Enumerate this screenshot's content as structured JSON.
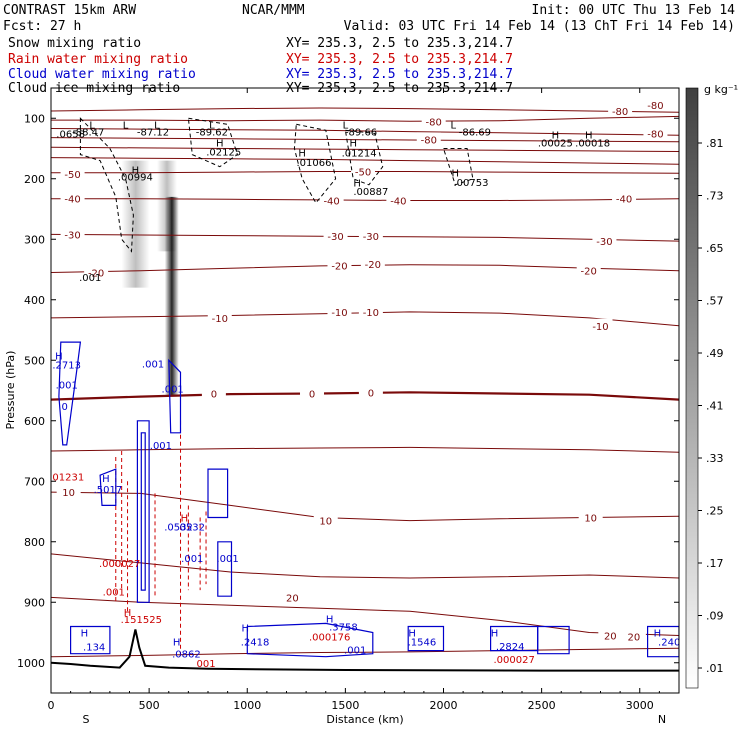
{
  "header": {
    "model": "CONTRAST 15km ARW",
    "org": "NCAR/MMM",
    "init": "Init: 00 UTC Thu 13 Feb 14",
    "fcst": "Fcst:   27 h",
    "valid": "Valid: 03 UTC Fri 14 Feb 14 (13 ChT Fri 14 Feb 14)"
  },
  "legend": [
    {
      "label": "Snow mixing ratio",
      "xy": "XY=  235.3,   2.5 to 235.3,214.7",
      "color": "#000000"
    },
    {
      "label": "Rain water mixing ratio",
      "xy": "XY=  235.3,   2.5 to 235.3,214.7",
      "color": "#cc0000"
    },
    {
      "label": "Cloud water mixing ratio",
      "xy": "XY=  235.3,   2.5 to 235.3,214.7",
      "color": "#0000cc"
    },
    {
      "label": "Cloud ice mixing ratio",
      "xy": "XY=  235.3,   2.5 to 235.3,214.7",
      "color": "#000000"
    }
  ],
  "colorbar": {
    "unit": "g kg⁻¹",
    "labels": [
      ".81",
      ".73",
      ".65",
      ".57",
      ".49",
      ".41",
      ".33",
      ".25",
      ".17",
      ".09",
      ".01"
    ]
  },
  "chart_data": {
    "type": "cross-section",
    "xlabel": "Distance (km)",
    "ylabel": "Pressure (hPa)",
    "xlim": [
      0,
      3200
    ],
    "ylim": [
      1050,
      50
    ],
    "xticks": [
      0,
      500,
      1000,
      1500,
      2000,
      2500,
      3000
    ],
    "yticks": [
      100,
      200,
      300,
      400,
      500,
      600,
      700,
      800,
      900,
      1000
    ],
    "end_labels": {
      "left": "S",
      "right": "N"
    },
    "temperature_isotherms": [
      {
        "value": "-80",
        "labels": [
          {
            "x": 2900,
            "p": 88,
            "t": "-80"
          },
          {
            "x": 3080,
            "p": 125,
            "t": "-80"
          }
        ]
      },
      {
        "value": "-80",
        "labels": [
          {
            "x": 1950,
            "p": 105,
            "t": "-80"
          },
          {
            "x": 3080,
            "p": 78,
            "t": "-80"
          }
        ]
      },
      {
        "value": "-80",
        "labels": [
          {
            "x": 1925,
            "p": 135,
            "t": "-80"
          }
        ]
      },
      {
        "value": "-50",
        "labels": [
          {
            "x": 110,
            "p": 192,
            "t": "-50"
          },
          {
            "x": 1590,
            "p": 188,
            "t": "-50"
          }
        ]
      },
      {
        "value": "-40",
        "labels": [
          {
            "x": 110,
            "p": 233,
            "t": "-40"
          },
          {
            "x": 1430,
            "p": 236,
            "t": "-40"
          },
          {
            "x": 1770,
            "p": 236,
            "t": "-40"
          },
          {
            "x": 2920,
            "p": 233,
            "t": "-40"
          }
        ]
      },
      {
        "value": "-30",
        "labels": [
          {
            "x": 110,
            "p": 292,
            "t": "-30"
          },
          {
            "x": 1450,
            "p": 295,
            "t": "-30"
          },
          {
            "x": 1630,
            "p": 295,
            "t": "-30"
          },
          {
            "x": 2820,
            "p": 303,
            "t": "-30"
          }
        ]
      },
      {
        "value": "-20",
        "labels": [
          {
            "x": 230,
            "p": 355,
            "t": "-20"
          },
          {
            "x": 1470,
            "p": 343,
            "t": "-20"
          },
          {
            "x": 1640,
            "p": 341,
            "t": "-20"
          },
          {
            "x": 2740,
            "p": 352,
            "t": "-20"
          }
        ]
      },
      {
        "value": "-10",
        "labels": [
          {
            "x": 860,
            "p": 430,
            "t": "-10"
          },
          {
            "x": 1470,
            "p": 420,
            "t": "-10"
          },
          {
            "x": 1630,
            "p": 420,
            "t": "-10"
          },
          {
            "x": 2800,
            "p": 443,
            "t": "-10"
          }
        ]
      },
      {
        "value": "0",
        "labels": [
          {
            "x": 830,
            "p": 555,
            "t": "0"
          },
          {
            "x": 1330,
            "p": 555,
            "t": "0"
          },
          {
            "x": 1630,
            "p": 553,
            "t": "0"
          }
        ]
      },
      {
        "value": "10",
        "labels": [
          {
            "x": 90,
            "p": 718,
            "t": "10"
          },
          {
            "x": 1400,
            "p": 765,
            "t": "10"
          },
          {
            "x": 2750,
            "p": 760,
            "t": "10"
          }
        ]
      },
      {
        "value": "20",
        "labels": [
          {
            "x": 1230,
            "p": 892,
            "t": "20"
          },
          {
            "x": 2850,
            "p": 955,
            "t": "20"
          },
          {
            "x": 2970,
            "p": 957,
            "t": "20"
          }
        ]
      }
    ],
    "cloud_ice_annotations": [
      {
        "x": 100,
        "p": 125,
        "t": ".0658"
      },
      {
        "x": 430,
        "p": 196,
        "t": ".00994"
      },
      {
        "x": 430,
        "p": 185,
        "t": "H"
      },
      {
        "x": 880,
        "p": 155,
        "t": ".02125"
      },
      {
        "x": 860,
        "p": 140,
        "t": "H"
      },
      {
        "x": 1340,
        "p": 172,
        "t": ".01066"
      },
      {
        "x": 1280,
        "p": 157,
        "t": "H"
      },
      {
        "x": 1570,
        "p": 157,
        "t": ".01214"
      },
      {
        "x": 1540,
        "p": 140,
        "t": "H"
      },
      {
        "x": 2570,
        "p": 140,
        "t": ".00025"
      },
      {
        "x": 2570,
        "p": 127,
        "t": "H"
      },
      {
        "x": 2760,
        "p": 140,
        "t": ".00018"
      },
      {
        "x": 2740,
        "p": 127,
        "t": "H"
      },
      {
        "x": 2140,
        "p": 205,
        "t": ".00753"
      },
      {
        "x": 2060,
        "p": 190,
        "t": "H"
      },
      {
        "x": 1630,
        "p": 220,
        "t": ".00887"
      },
      {
        "x": 1560,
        "p": 206,
        "t": "H"
      },
      {
        "x": 200,
        "p": 362,
        "t": ".001"
      },
      {
        "x": 210,
        "p": 110,
        "t": "L"
      },
      {
        "x": 380,
        "p": 110,
        "t": "L"
      },
      {
        "x": 540,
        "p": 110,
        "t": "L"
      },
      {
        "x": 820,
        "p": 110,
        "t": "L"
      },
      {
        "x": 1500,
        "p": 110,
        "t": "L"
      },
      {
        "x": 2050,
        "p": 110,
        "t": "L"
      },
      {
        "x": 190,
        "p": 122,
        "t": "-88.47"
      },
      {
        "x": 520,
        "p": 122,
        "t": "-87.12"
      },
      {
        "x": 820,
        "p": 122,
        "t": "-89.62"
      },
      {
        "x": 1580,
        "p": 122,
        "t": "-89.66"
      },
      {
        "x": 2160,
        "p": 122,
        "t": "-86.69"
      }
    ],
    "cloud_water_annotations": [
      {
        "x": 40,
        "p": 492,
        "t": "H"
      },
      {
        "x": 80,
        "p": 507,
        "t": ".2713"
      },
      {
        "x": 80,
        "p": 540,
        "t": ".001"
      },
      {
        "x": 70,
        "p": 576,
        "t": "0"
      },
      {
        "x": 520,
        "p": 505,
        "t": ".001"
      },
      {
        "x": 620,
        "p": 547,
        "t": ".001"
      },
      {
        "x": 290,
        "p": 713,
        "t": ".5017"
      },
      {
        "x": 280,
        "p": 695,
        "t": "H"
      },
      {
        "x": 650,
        "p": 775,
        "t": ".0532"
      },
      {
        "x": 720,
        "p": 775,
        "t": "0532"
      },
      {
        "x": 720,
        "p": 827,
        "t": ".001"
      },
      {
        "x": 900,
        "p": 827,
        "t": ".001"
      },
      {
        "x": 560,
        "p": 640,
        "t": ".001"
      },
      {
        "x": 170,
        "p": 950,
        "t": "H"
      },
      {
        "x": 220,
        "p": 973,
        "t": ".134"
      },
      {
        "x": 640,
        "p": 965,
        "t": "H"
      },
      {
        "x": 690,
        "p": 985,
        "t": ".0862"
      },
      {
        "x": 990,
        "p": 942,
        "t": "H"
      },
      {
        "x": 1040,
        "p": 965,
        "t": ".2418"
      },
      {
        "x": 1420,
        "p": 927,
        "t": "H"
      },
      {
        "x": 1490,
        "p": 940,
        "t": ".3758"
      },
      {
        "x": 1550,
        "p": 978,
        "t": ".001"
      },
      {
        "x": 1840,
        "p": 950,
        "t": "H"
      },
      {
        "x": 1890,
        "p": 965,
        "t": ".1546"
      },
      {
        "x": 2260,
        "p": 950,
        "t": "H"
      },
      {
        "x": 2340,
        "p": 972,
        "t": ".2824"
      },
      {
        "x": 3090,
        "p": 950,
        "t": "H"
      },
      {
        "x": 3150,
        "p": 965,
        "t": ".240"
      }
    ],
    "rain_annotations": [
      {
        "x": 80,
        "p": 692,
        "t": ".01231"
      },
      {
        "x": 350,
        "p": 835,
        "t": ".000027"
      },
      {
        "x": 320,
        "p": 882,
        "t": ".001"
      },
      {
        "x": 460,
        "p": 928,
        "t": ".151525"
      },
      {
        "x": 390,
        "p": 916,
        "t": "H"
      },
      {
        "x": 680,
        "p": 760,
        "t": "H"
      },
      {
        "x": 1420,
        "p": 957,
        "t": ".000176"
      },
      {
        "x": 2360,
        "p": 994,
        "t": ".000027"
      },
      {
        "x": 790,
        "p": 1000,
        "t": "001"
      }
    ]
  }
}
